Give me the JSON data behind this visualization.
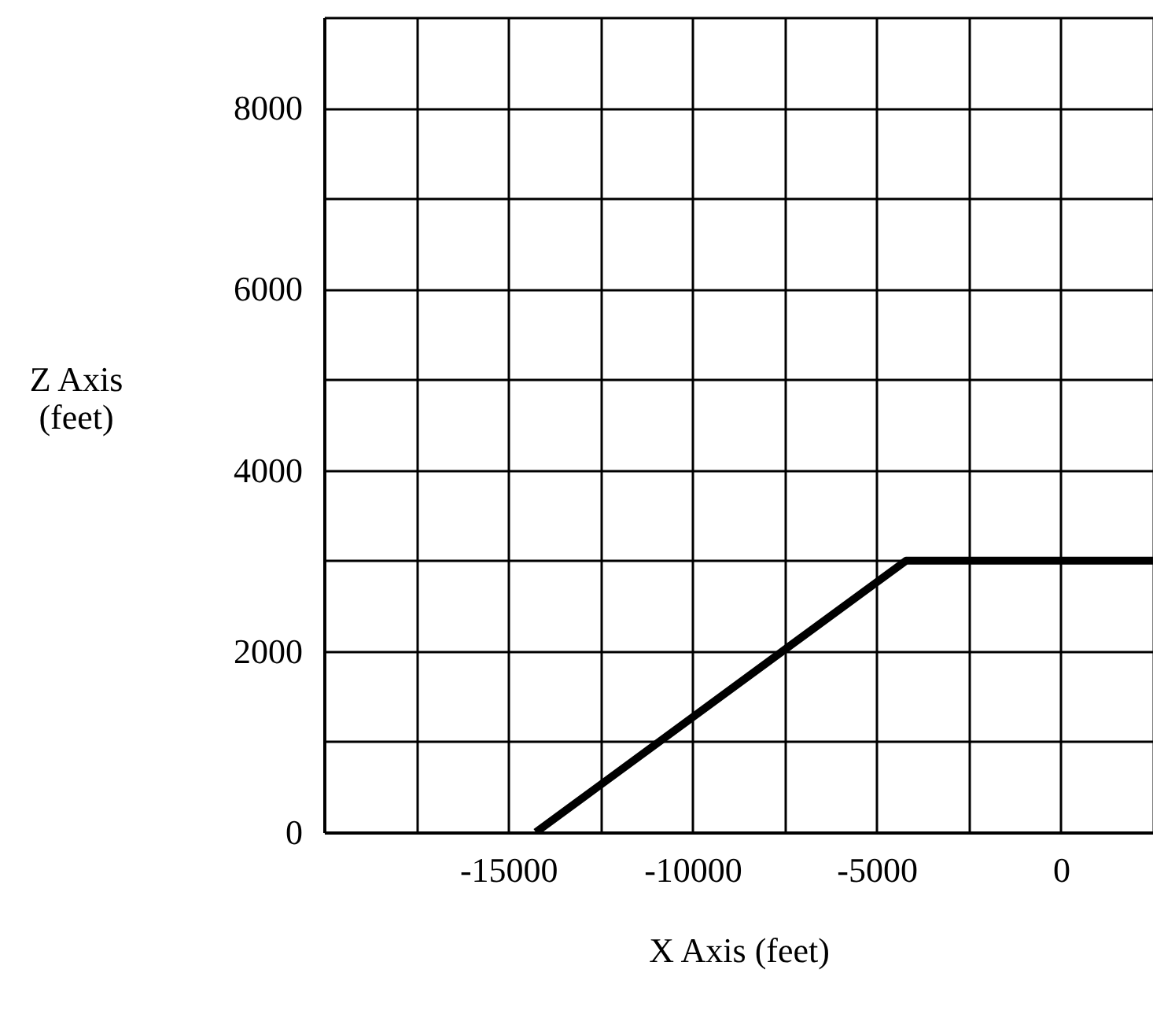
{
  "chart_data": {
    "type": "line",
    "xlabel": "X Axis (feet)",
    "ylabel": "Z Axis (feet)",
    "x": [
      -14250,
      -4200,
      2500
    ],
    "series": [
      {
        "color": "#000000",
        "values": [
          0,
          3000,
          3000
        ]
      }
    ],
    "xlim": [
      -20000,
      2500
    ],
    "ylim": [
      0,
      9000
    ],
    "xticks": [
      {
        "value": -20000,
        "label": null
      },
      {
        "value": -17500,
        "label": null
      },
      -15000,
      {
        "value": -12500,
        "label": null
      },
      -10000,
      {
        "value": -7500,
        "label": null
      },
      -5000,
      {
        "value": -2500,
        "label": null
      },
      0,
      {
        "value": 2500,
        "label": null
      }
    ],
    "yticks": [
      0,
      {
        "value": 1000,
        "label": null
      },
      2000,
      {
        "value": 3000,
        "label": null
      },
      4000,
      {
        "value": 5000,
        "label": null
      },
      6000,
      {
        "value": 7000,
        "label": null
      },
      8000,
      {
        "value": 9000,
        "label": null
      }
    ],
    "grid": true,
    "marker": "none",
    "line_style": "solid"
  }
}
